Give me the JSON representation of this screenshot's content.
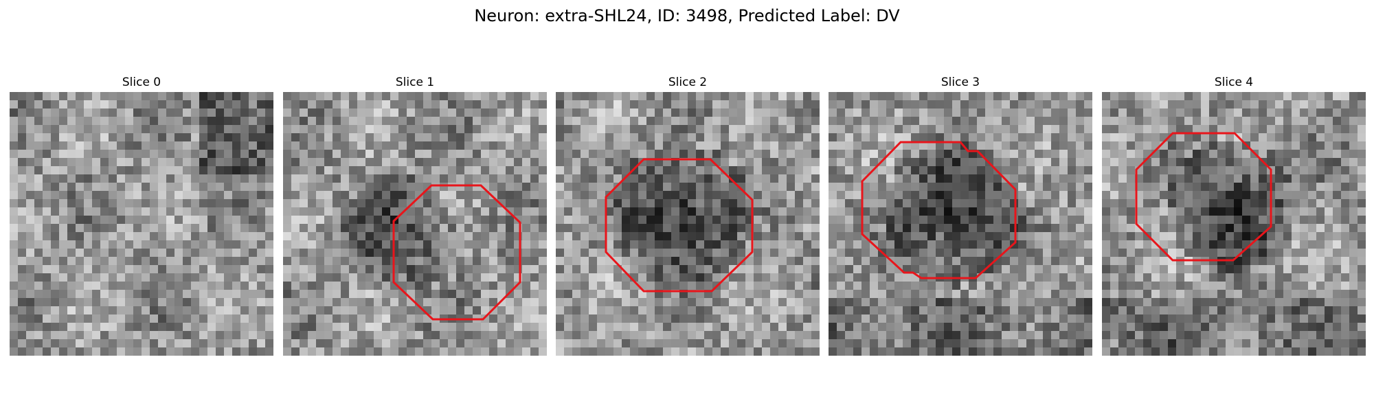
{
  "figure": {
    "title": "Neuron: extra-SHL24, ID: 3498, Predicted Label: DV"
  },
  "panels": [
    {
      "title": "Slice 0",
      "has_outline": false,
      "seed": 11,
      "blob": null
    },
    {
      "title": "Slice 1",
      "has_outline": true,
      "seed": 23,
      "blob": "soft-left"
    },
    {
      "title": "Slice 2",
      "has_outline": true,
      "seed": 37,
      "blob": "dark-center"
    },
    {
      "title": "Slice 3",
      "has_outline": true,
      "seed": 53,
      "blob": "dark-center"
    },
    {
      "title": "Slice 4",
      "has_outline": true,
      "seed": 71,
      "blob": "dark-upper"
    }
  ],
  "colors": {
    "outline": "#e8151b",
    "background": "#ffffff"
  }
}
